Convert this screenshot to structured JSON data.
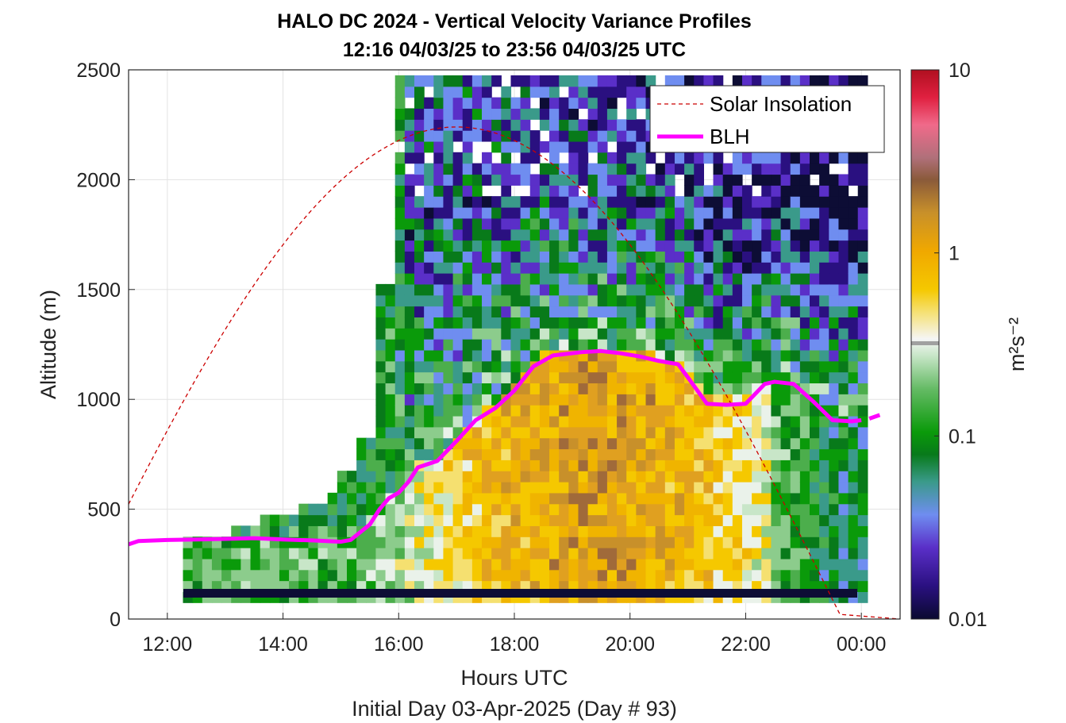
{
  "chart_data": {
    "type": "heatmap",
    "title_line1": "HALO DC 2024 - Vertical Velocity Variance Profiles",
    "title_line2": "12:16 04/03/25 to 23:56 04/03/25  UTC",
    "xlabel": "Hours UTC",
    "xlabel2": "Initial Day 03-Apr-2025 (Day # 93)",
    "ylabel": "Altitude (m)",
    "xlim": [
      11.33,
      24.67
    ],
    "ylim": [
      0,
      2500
    ],
    "x_ticks": [
      12,
      14,
      16,
      18,
      20,
      22,
      24
    ],
    "x_tick_labels": [
      "12:00",
      "14:00",
      "16:00",
      "18:00",
      "20:00",
      "22:00",
      "00:00"
    ],
    "y_ticks": [
      0,
      500,
      1000,
      1500,
      2000,
      2500
    ],
    "y_tick_labels": [
      "0",
      "500",
      "1000",
      "1500",
      "2000",
      "2500"
    ],
    "grid": true,
    "colorbar": {
      "label": "m²s⁻²",
      "scale": "log",
      "range": [
        0.01,
        10
      ],
      "tick_values": [
        0.01,
        0.1,
        1,
        10
      ],
      "tick_labels": [
        "0.01",
        "0.1",
        "1",
        "10"
      ]
    },
    "legend": {
      "position": "top-right",
      "entries": [
        {
          "label": "Solar Insolation",
          "color": "#cc0000",
          "style": "dashed"
        },
        {
          "label": "BLH",
          "color": "#ff00ff",
          "style": "solid"
        }
      ]
    },
    "heatmap": {
      "x_start": 12.27,
      "x_step": 0.1667,
      "y_start": 75,
      "y_step": 50,
      "columns": 71,
      "rows": 49
    },
    "series": [
      {
        "name": "BLH",
        "color": "#ff00ff",
        "x": [
          11.33,
          11.5,
          12.0,
          12.5,
          13.0,
          13.5,
          14.0,
          14.5,
          15.0,
          15.17,
          15.5,
          15.67,
          15.83,
          16.0,
          16.17,
          16.33,
          16.67,
          17.0,
          17.33,
          17.67,
          18.0,
          18.33,
          18.67,
          19.0,
          19.17,
          19.5,
          19.83,
          20.17,
          20.5,
          20.83,
          21.0,
          21.33,
          21.67,
          22.0,
          22.33,
          22.5,
          22.83,
          23.17,
          23.5,
          23.83,
          24.0,
          24.33
        ],
        "y": [
          340,
          355,
          360,
          362,
          365,
          368,
          362,
          358,
          352,
          360,
          430,
          500,
          550,
          575,
          625,
          690,
          720,
          810,
          905,
          960,
          1040,
          1150,
          1200,
          1210,
          1215,
          1220,
          1210,
          1195,
          1175,
          1160,
          1100,
          980,
          975,
          980,
          1070,
          1080,
          1070,
          990,
          905,
          900,
          905,
          930
        ]
      },
      {
        "name": "Solar Insolation",
        "color": "#cc0000",
        "peak_hour": 17.0,
        "peak_altitude": 2240,
        "sunset_hour": 23.67
      }
    ]
  }
}
